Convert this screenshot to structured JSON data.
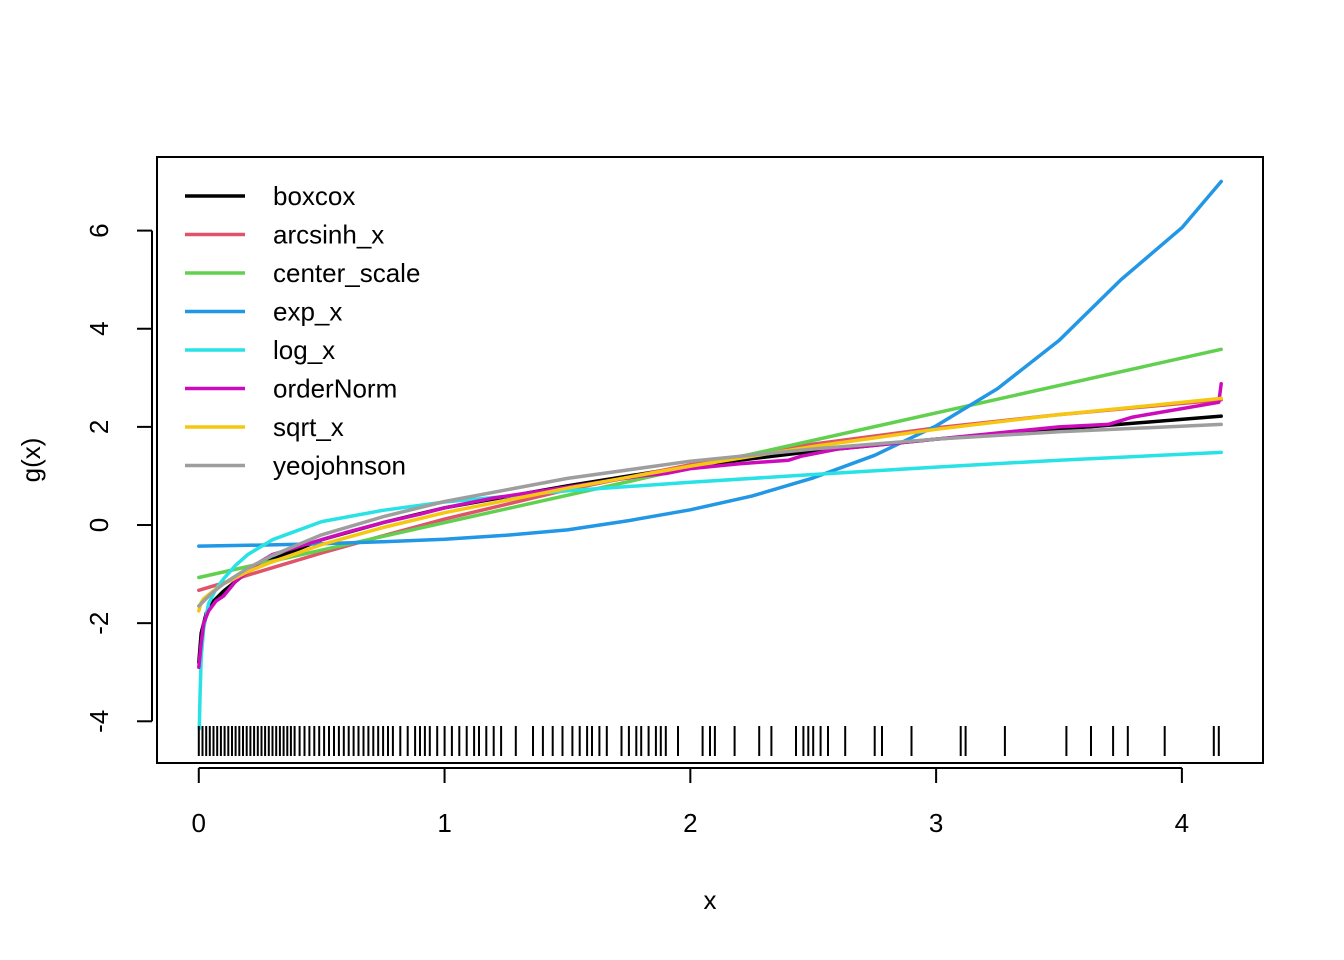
{
  "chart_data": {
    "type": "line",
    "title": "",
    "xlabel": "x",
    "ylabel": "g(x)",
    "xlim": [
      -0.17,
      4.33
    ],
    "ylim": [
      -4.85,
      7.5
    ],
    "x_ticks": [
      "0",
      "1",
      "2",
      "3",
      "4"
    ],
    "y_ticks": [
      "-4",
      "-2",
      "0",
      "2",
      "4",
      "6"
    ],
    "legend_position": "top-left",
    "grid": false,
    "series": [
      {
        "name": "boxcox",
        "color": "#000000",
        "x": [
          0,
          0.01,
          0.03,
          0.06,
          0.1,
          0.2,
          0.3,
          0.5,
          0.75,
          1.0,
          1.5,
          2.0,
          2.5,
          3.0,
          3.5,
          4.16
        ],
        "y": [
          -2.8,
          -2.2,
          -1.8,
          -1.55,
          -1.35,
          -0.95,
          -0.7,
          -0.3,
          0.05,
          0.35,
          0.8,
          1.2,
          1.5,
          1.75,
          1.95,
          2.22
        ]
      },
      {
        "name": "arcsinh_x",
        "color": "#DF536B",
        "x": [
          0,
          0.1,
          0.2,
          0.3,
          0.5,
          0.75,
          1.0,
          1.25,
          1.5,
          2.0,
          2.5,
          3.0,
          3.5,
          4.16
        ],
        "y": [
          -1.33,
          -1.18,
          -1.02,
          -0.87,
          -0.57,
          -0.22,
          0.12,
          0.42,
          0.72,
          1.23,
          1.65,
          1.98,
          2.25,
          2.55
        ]
      },
      {
        "name": "center_scale",
        "color": "#61D04F",
        "x": [
          0,
          4.16
        ],
        "y": [
          -1.07,
          3.58
        ]
      },
      {
        "name": "exp_x",
        "color": "#2297E6",
        "x": [
          0,
          0.25,
          0.5,
          0.75,
          1.0,
          1.25,
          1.5,
          1.75,
          2.0,
          2.25,
          2.5,
          2.75,
          3.0,
          3.25,
          3.5,
          3.75,
          4.0,
          4.16
        ],
        "y": [
          -0.43,
          -0.41,
          -0.38,
          -0.34,
          -0.29,
          -0.21,
          -0.1,
          0.09,
          0.31,
          0.59,
          0.96,
          1.42,
          2.02,
          2.78,
          3.76,
          4.99,
          6.06,
          7.0
        ]
      },
      {
        "name": "log_x",
        "color": "#28E2E5",
        "x": [
          0.002,
          0.005,
          0.01,
          0.02,
          0.04,
          0.07,
          0.1,
          0.15,
          0.2,
          0.3,
          0.5,
          0.75,
          1.0,
          1.5,
          2.0,
          2.5,
          3.0,
          3.5,
          4.16
        ],
        "y": [
          -4.15,
          -3.5,
          -2.7,
          -2.1,
          -1.6,
          -1.3,
          -1.1,
          -0.82,
          -0.6,
          -0.3,
          0.07,
          0.3,
          0.47,
          0.7,
          0.87,
          1.03,
          1.18,
          1.32,
          1.48
        ]
      },
      {
        "name": "orderNorm",
        "color": "#CD0BBC",
        "x": [
          0,
          0.01,
          0.02,
          0.04,
          0.07,
          0.1,
          0.15,
          0.2,
          0.25,
          0.3,
          0.4,
          0.5,
          0.6,
          0.75,
          0.9,
          1.0,
          1.2,
          1.4,
          1.6,
          1.8,
          1.9,
          2.0,
          2.2,
          2.4,
          2.45,
          2.6,
          2.8,
          3.0,
          3.2,
          3.5,
          3.7,
          3.8,
          4.15,
          4.16
        ],
        "y": [
          -2.9,
          -2.4,
          -2.0,
          -1.75,
          -1.55,
          -1.45,
          -1.15,
          -0.95,
          -0.75,
          -0.6,
          -0.45,
          -0.3,
          -0.15,
          0.05,
          0.22,
          0.35,
          0.55,
          0.7,
          0.85,
          1.0,
          1.05,
          1.15,
          1.25,
          1.32,
          1.4,
          1.55,
          1.65,
          1.75,
          1.85,
          2.0,
          2.05,
          2.2,
          2.5,
          2.88
        ]
      },
      {
        "name": "sqrt_x",
        "color": "#F5C710",
        "x": [
          0,
          0.01,
          0.02,
          0.05,
          0.1,
          0.2,
          0.3,
          0.5,
          0.75,
          1.0,
          1.5,
          2.0,
          2.5,
          3.0,
          3.5,
          4.16
        ],
        "y": [
          -1.75,
          -1.58,
          -1.5,
          -1.38,
          -1.2,
          -0.95,
          -0.75,
          -0.4,
          -0.05,
          0.25,
          0.75,
          1.2,
          1.6,
          1.95,
          2.25,
          2.58
        ]
      },
      {
        "name": "yeojohnson",
        "color": "#9E9E9E",
        "x": [
          0,
          0.02,
          0.05,
          0.1,
          0.2,
          0.3,
          0.5,
          0.75,
          1.0,
          1.5,
          2.0,
          2.5,
          3.0,
          3.5,
          4.16
        ],
        "y": [
          -1.65,
          -1.55,
          -1.4,
          -1.2,
          -0.88,
          -0.62,
          -0.2,
          0.17,
          0.48,
          0.95,
          1.3,
          1.55,
          1.75,
          1.9,
          2.05
        ]
      }
    ],
    "rug": [
      0.0,
      0.015,
      0.03,
      0.045,
      0.06,
      0.075,
      0.09,
      0.105,
      0.12,
      0.135,
      0.15,
      0.165,
      0.18,
      0.195,
      0.21,
      0.225,
      0.24,
      0.255,
      0.27,
      0.285,
      0.3,
      0.315,
      0.33,
      0.345,
      0.36,
      0.375,
      0.39,
      0.41,
      0.43,
      0.45,
      0.47,
      0.49,
      0.51,
      0.53,
      0.55,
      0.57,
      0.59,
      0.61,
      0.63,
      0.65,
      0.67,
      0.69,
      0.71,
      0.73,
      0.75,
      0.77,
      0.79,
      0.82,
      0.85,
      0.88,
      0.9,
      0.92,
      0.94,
      0.97,
      1.0,
      1.03,
      1.06,
      1.09,
      1.12,
      1.14,
      1.17,
      1.2,
      1.23,
      1.29,
      1.36,
      1.4,
      1.44,
      1.48,
      1.52,
      1.55,
      1.58,
      1.6,
      1.63,
      1.66,
      1.72,
      1.75,
      1.78,
      1.8,
      1.83,
      1.86,
      1.88,
      1.9,
      1.95,
      2.05,
      2.08,
      2.1,
      2.18,
      2.28,
      2.33,
      2.43,
      2.46,
      2.48,
      2.5,
      2.53,
      2.56,
      2.63,
      2.75,
      2.78,
      2.9,
      3.1,
      3.12,
      3.28,
      3.53,
      3.63,
      3.72,
      3.78,
      3.93,
      4.13,
      4.15
    ]
  }
}
